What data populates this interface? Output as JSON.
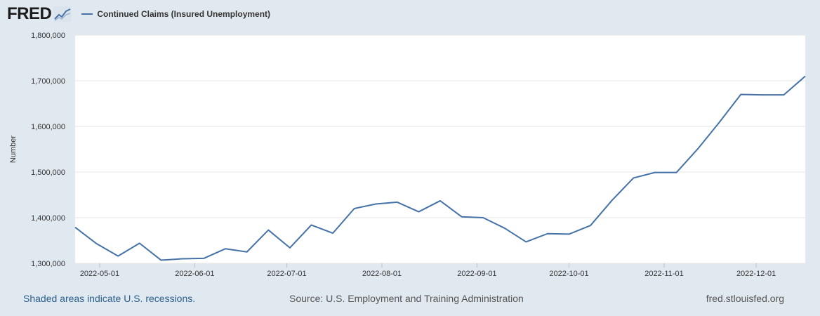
{
  "header": {
    "logo_text": "FRED",
    "legend_label": "Continued Claims (Insured Unemployment)"
  },
  "footer": {
    "recession_note": "Shaded areas indicate U.S. recessions.",
    "source": "Source: U.S. Employment and Training Administration",
    "site": "fred.stlouisfed.org"
  },
  "colors": {
    "line": "#4572a7",
    "background": "#e1e9f0",
    "plot_background": "#ffffff",
    "grid": "#e6e6e6"
  },
  "chart_data": {
    "type": "line",
    "ylabel": "Number",
    "xlabel": "",
    "ylim": [
      1300000,
      1800000
    ],
    "yticks": [
      1300000,
      1400000,
      1500000,
      1600000,
      1700000,
      1800000
    ],
    "ytick_labels": [
      "1,300,000",
      "1,400,000",
      "1,500,000",
      "1,600,000",
      "1,700,000",
      "1,800,000"
    ],
    "xlim": [
      "2022-04-23",
      "2022-12-17"
    ],
    "xticks": [
      "2022-05-01",
      "2022-06-01",
      "2022-07-01",
      "2022-08-01",
      "2022-09-01",
      "2022-10-01",
      "2022-11-01",
      "2022-12-01"
    ],
    "grid": true,
    "legend_position": "top-left",
    "series": [
      {
        "name": "Continued Claims (Insured Unemployment)",
        "x": [
          "2022-04-23",
          "2022-04-30",
          "2022-05-07",
          "2022-05-14",
          "2022-05-21",
          "2022-05-28",
          "2022-06-04",
          "2022-06-11",
          "2022-06-18",
          "2022-06-25",
          "2022-07-02",
          "2022-07-09",
          "2022-07-16",
          "2022-07-23",
          "2022-07-30",
          "2022-08-06",
          "2022-08-13",
          "2022-08-20",
          "2022-08-27",
          "2022-09-03",
          "2022-09-10",
          "2022-09-17",
          "2022-09-24",
          "2022-10-01",
          "2022-10-08",
          "2022-10-15",
          "2022-10-22",
          "2022-10-29",
          "2022-11-05",
          "2022-11-12",
          "2022-11-19",
          "2022-11-26",
          "2022-12-03",
          "2022-12-10",
          "2022-12-17"
        ],
        "values": [
          1379000,
          1343000,
          1316000,
          1344000,
          1307000,
          1310000,
          1311000,
          1332000,
          1325000,
          1373000,
          1334000,
          1384000,
          1366000,
          1420000,
          1430000,
          1434000,
          1413000,
          1437000,
          1402000,
          1400000,
          1377000,
          1347000,
          1365000,
          1364000,
          1383000,
          1438000,
          1487000,
          1499000,
          1499000,
          1551000,
          1609000,
          1670000,
          1669000,
          1669000,
          1710000
        ]
      }
    ]
  }
}
